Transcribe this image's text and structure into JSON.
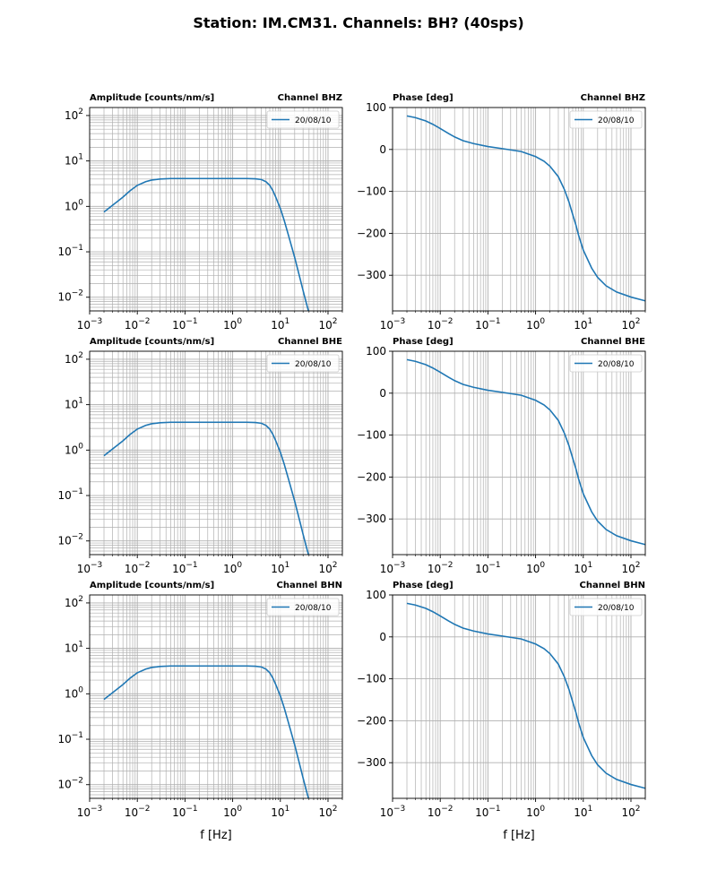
{
  "page": {
    "title": "Station: IM.CM31. Channels: BH? (40sps)"
  },
  "colors": {
    "series": "#1f77b4",
    "grid": "#b0b0b0"
  },
  "chart_data": [
    {
      "type": "line",
      "kind": "amplitude",
      "channel_title": "Channel BHZ",
      "title_left": "Amplitude [counts/nm/s]",
      "xlabel": "",
      "xscale": "log",
      "yscale": "log",
      "xlim": [
        0.001,
        200
      ],
      "ylim": [
        0.005,
        150
      ],
      "xticks": [
        0.001,
        0.01,
        0.1,
        1,
        10,
        100
      ],
      "yticks": [
        0.01,
        0.1,
        1,
        10,
        100
      ],
      "legend": "20/08/10",
      "legend_loc": "upper right",
      "series": [
        {
          "name": "20/08/10",
          "x": [
            0.002,
            0.003,
            0.005,
            0.007,
            0.01,
            0.015,
            0.02,
            0.03,
            0.05,
            0.1,
            0.2,
            0.5,
            1,
            2,
            3,
            4,
            5,
            6,
            7,
            8,
            10,
            12,
            15,
            20,
            25,
            30,
            35,
            40
          ],
          "y": [
            0.75,
            1.05,
            1.6,
            2.2,
            2.9,
            3.5,
            3.8,
            4.0,
            4.1,
            4.1,
            4.1,
            4.1,
            4.1,
            4.1,
            4.05,
            3.9,
            3.5,
            2.9,
            2.2,
            1.6,
            0.9,
            0.5,
            0.22,
            0.075,
            0.03,
            0.014,
            0.0075,
            0.0045
          ]
        }
      ]
    },
    {
      "type": "line",
      "kind": "phase",
      "channel_title": "Channel BHZ",
      "title_left": "Phase [deg]",
      "xlabel": "",
      "xscale": "log",
      "yscale": "linear",
      "xlim": [
        0.001,
        200
      ],
      "ylim": [
        -385,
        100
      ],
      "xticks": [
        0.001,
        0.01,
        0.1,
        1,
        10,
        100
      ],
      "yticks": [
        100,
        0,
        -100,
        -200,
        -300
      ],
      "legend": "20/08/10",
      "legend_loc": "upper right",
      "series": [
        {
          "name": "20/08/10",
          "x": [
            0.002,
            0.003,
            0.005,
            0.007,
            0.01,
            0.015,
            0.02,
            0.03,
            0.05,
            0.1,
            0.2,
            0.5,
            1,
            1.5,
            2,
            3,
            4,
            5,
            6,
            7,
            8,
            10,
            15,
            20,
            30,
            50,
            100,
            200
          ],
          "y": [
            80,
            76,
            68,
            60,
            50,
            38,
            30,
            21,
            14,
            7,
            2,
            -5,
            -17,
            -28,
            -40,
            -65,
            -95,
            -125,
            -155,
            -180,
            -205,
            -240,
            -283,
            -305,
            -325,
            -340,
            -352,
            -361
          ]
        }
      ]
    },
    {
      "type": "line",
      "kind": "amplitude",
      "channel_title": "Channel BHE",
      "title_left": "Amplitude [counts/nm/s]",
      "xlabel": "",
      "xscale": "log",
      "yscale": "log",
      "xlim": [
        0.001,
        200
      ],
      "ylim": [
        0.005,
        150
      ],
      "xticks": [
        0.001,
        0.01,
        0.1,
        1,
        10,
        100
      ],
      "yticks": [
        0.01,
        0.1,
        1,
        10,
        100
      ],
      "legend": "20/08/10",
      "legend_loc": "upper right",
      "series": [
        {
          "name": "20/08/10",
          "x": [
            0.002,
            0.003,
            0.005,
            0.007,
            0.01,
            0.015,
            0.02,
            0.03,
            0.05,
            0.1,
            0.2,
            0.5,
            1,
            2,
            3,
            4,
            5,
            6,
            7,
            8,
            10,
            12,
            15,
            20,
            25,
            30,
            35,
            40
          ],
          "y": [
            0.75,
            1.05,
            1.6,
            2.2,
            2.9,
            3.5,
            3.8,
            4.0,
            4.1,
            4.1,
            4.1,
            4.1,
            4.1,
            4.1,
            4.05,
            3.9,
            3.5,
            2.9,
            2.2,
            1.6,
            0.9,
            0.5,
            0.22,
            0.075,
            0.03,
            0.014,
            0.0075,
            0.0045
          ]
        }
      ]
    },
    {
      "type": "line",
      "kind": "phase",
      "channel_title": "Channel BHE",
      "title_left": "Phase [deg]",
      "xlabel": "",
      "xscale": "log",
      "yscale": "linear",
      "xlim": [
        0.001,
        200
      ],
      "ylim": [
        -385,
        100
      ],
      "xticks": [
        0.001,
        0.01,
        0.1,
        1,
        10,
        100
      ],
      "yticks": [
        100,
        0,
        -100,
        -200,
        -300
      ],
      "legend": "20/08/10",
      "legend_loc": "upper right",
      "series": [
        {
          "name": "20/08/10",
          "x": [
            0.002,
            0.003,
            0.005,
            0.007,
            0.01,
            0.015,
            0.02,
            0.03,
            0.05,
            0.1,
            0.2,
            0.5,
            1,
            1.5,
            2,
            3,
            4,
            5,
            6,
            7,
            8,
            10,
            15,
            20,
            30,
            50,
            100,
            200
          ],
          "y": [
            80,
            76,
            68,
            60,
            50,
            38,
            30,
            21,
            14,
            7,
            2,
            -5,
            -17,
            -28,
            -40,
            -65,
            -95,
            -125,
            -155,
            -180,
            -205,
            -240,
            -283,
            -305,
            -325,
            -340,
            -352,
            -361
          ]
        }
      ]
    },
    {
      "type": "line",
      "kind": "amplitude",
      "channel_title": "Channel BHN",
      "title_left": "Amplitude [counts/nm/s]",
      "xlabel": "f [Hz]",
      "xscale": "log",
      "yscale": "log",
      "xlim": [
        0.001,
        200
      ],
      "ylim": [
        0.005,
        150
      ],
      "xticks": [
        0.001,
        0.01,
        0.1,
        1,
        10,
        100
      ],
      "yticks": [
        0.01,
        0.1,
        1,
        10,
        100
      ],
      "legend": "20/08/10",
      "legend_loc": "upper right",
      "series": [
        {
          "name": "20/08/10",
          "x": [
            0.002,
            0.003,
            0.005,
            0.007,
            0.01,
            0.015,
            0.02,
            0.03,
            0.05,
            0.1,
            0.2,
            0.5,
            1,
            2,
            3,
            4,
            5,
            6,
            7,
            8,
            10,
            12,
            15,
            20,
            25,
            30,
            35,
            40
          ],
          "y": [
            0.75,
            1.05,
            1.6,
            2.2,
            2.9,
            3.5,
            3.8,
            4.0,
            4.1,
            4.1,
            4.1,
            4.1,
            4.1,
            4.1,
            4.05,
            3.9,
            3.5,
            2.9,
            2.2,
            1.6,
            0.9,
            0.5,
            0.22,
            0.075,
            0.03,
            0.014,
            0.0075,
            0.0045
          ]
        }
      ]
    },
    {
      "type": "line",
      "kind": "phase",
      "channel_title": "Channel BHN",
      "title_left": "Phase [deg]",
      "xlabel": "f [Hz]",
      "xscale": "log",
      "yscale": "linear",
      "xlim": [
        0.001,
        200
      ],
      "ylim": [
        -385,
        100
      ],
      "xticks": [
        0.001,
        0.01,
        0.1,
        1,
        10,
        100
      ],
      "yticks": [
        100,
        0,
        -100,
        -200,
        -300
      ],
      "legend": "20/08/10",
      "legend_loc": "upper right",
      "series": [
        {
          "name": "20/08/10",
          "x": [
            0.002,
            0.003,
            0.005,
            0.007,
            0.01,
            0.015,
            0.02,
            0.03,
            0.05,
            0.1,
            0.2,
            0.5,
            1,
            1.5,
            2,
            3,
            4,
            5,
            6,
            7,
            8,
            10,
            15,
            20,
            30,
            50,
            100,
            200
          ],
          "y": [
            80,
            76,
            68,
            60,
            50,
            38,
            30,
            21,
            14,
            7,
            2,
            -5,
            -17,
            -28,
            -40,
            -65,
            -95,
            -125,
            -155,
            -180,
            -205,
            -240,
            -283,
            -305,
            -325,
            -340,
            -352,
            -361
          ]
        }
      ]
    }
  ]
}
